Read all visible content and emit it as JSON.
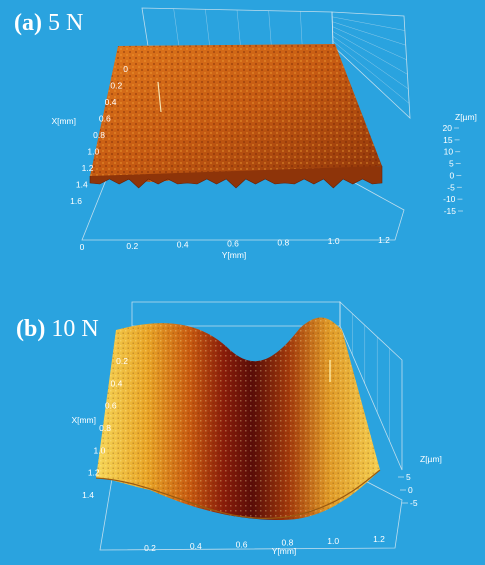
{
  "chart_data": [
    {
      "type": "surface",
      "panel_letter": "(a)",
      "panel_load": "5 N",
      "xlabel": "X[mm]",
      "ylabel": "Y[mm]",
      "zlabel": "Z[µm]",
      "x_ticks": [
        "0",
        "0.2",
        "0.4",
        "0.6",
        "0.8",
        "1.0",
        "1.2",
        "1.4",
        "1.6"
      ],
      "y_ticks": [
        "0",
        "0.2",
        "0.4",
        "0.6",
        "0.8",
        "1.0",
        "1.2"
      ],
      "z_ticks": [
        "20",
        "15",
        "10",
        "5",
        "0",
        "-5",
        "-10",
        "-15"
      ],
      "xlim": [
        0,
        1.6
      ],
      "ylim": [
        0,
        1.2
      ],
      "zlim": [
        -15,
        20
      ],
      "surface": "flat",
      "colormap": [
        "#7a2a08",
        "#b5480f",
        "#e0781c",
        "#f2a63a"
      ]
    },
    {
      "type": "surface",
      "panel_letter": "(b)",
      "panel_load": "10 N",
      "xlabel": "X[mm]",
      "ylabel": "Y[mm]",
      "zlabel": "Z[µm]",
      "x_ticks": [
        "0.2",
        "0.4",
        "0.6",
        "0.8",
        "1.0",
        "1.2",
        "1.4"
      ],
      "y_ticks": [
        "0.2",
        "0.4",
        "0.6",
        "0.8",
        "1.0",
        "1.2"
      ],
      "z_ticks": [
        "5",
        "0",
        "-5"
      ],
      "xlim": [
        0,
        1.4
      ],
      "ylim": [
        0,
        1.2
      ],
      "zlim": [
        -8,
        6
      ],
      "surface": "wear-groove",
      "colormap": [
        "#4a0808",
        "#8a1c0a",
        "#c85a10",
        "#e9a527",
        "#f7d85a"
      ]
    }
  ]
}
